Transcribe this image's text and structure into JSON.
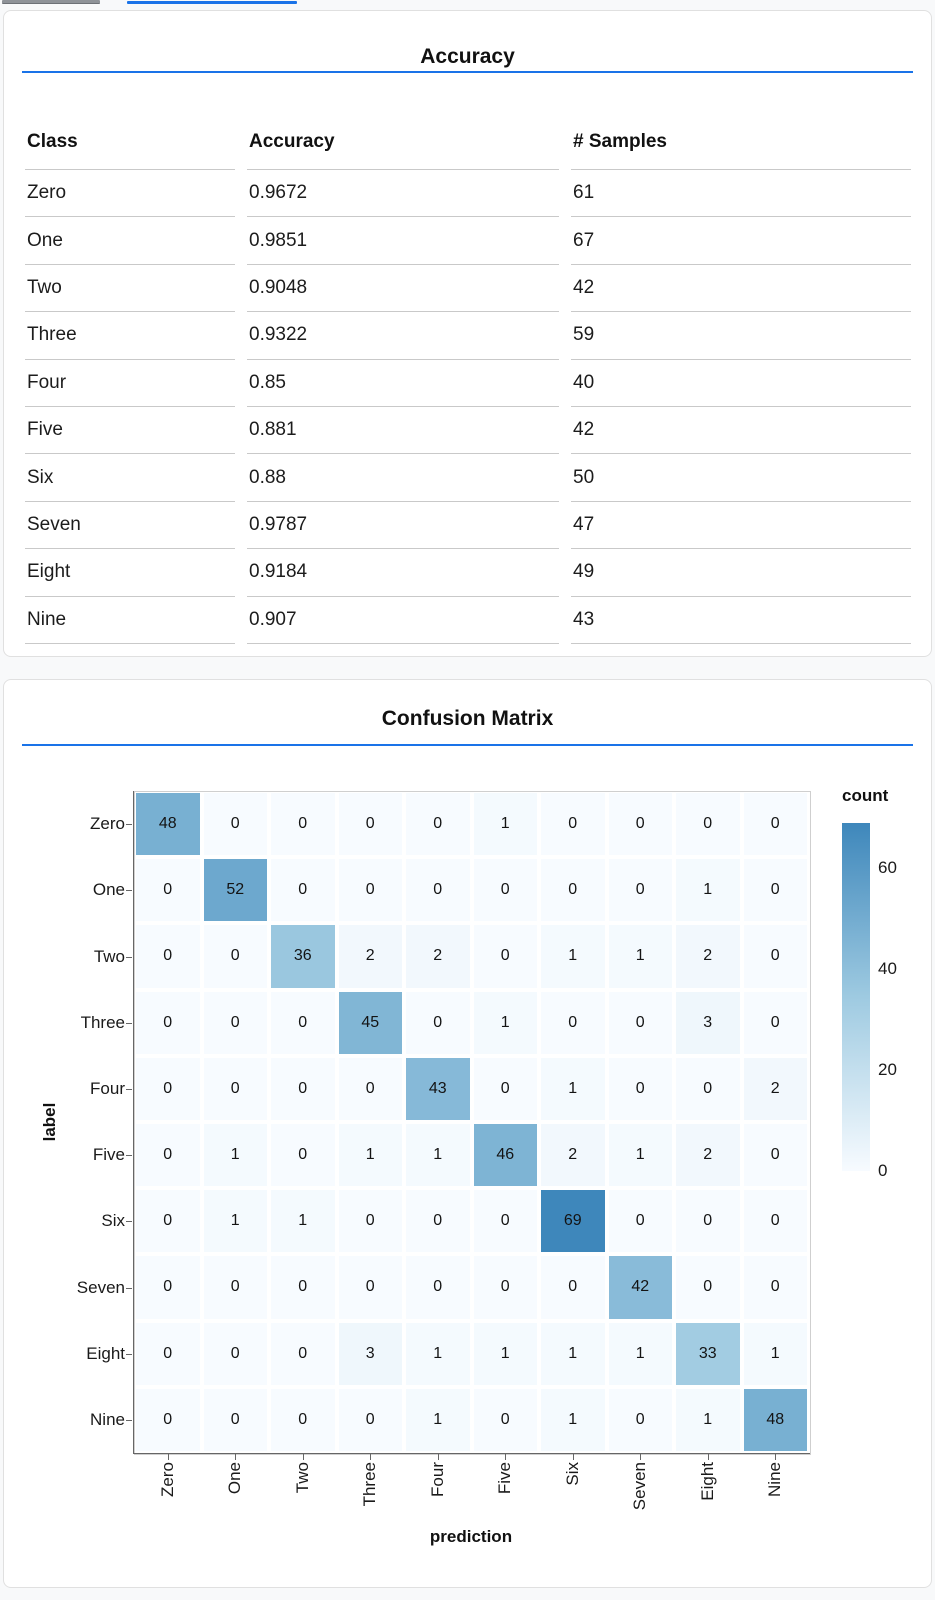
{
  "colors": {
    "accent": "#1a73e8",
    "heat_min": "#f7fbff",
    "heat_mid": "#9ecae1",
    "heat_max": "#3e87bb"
  },
  "accuracy_panel": {
    "title": "Accuracy",
    "columns": [
      "Class",
      "Accuracy",
      "# Samples"
    ],
    "rows": [
      [
        "Zero",
        "0.9672",
        "61"
      ],
      [
        "One",
        "0.9851",
        "67"
      ],
      [
        "Two",
        "0.9048",
        "42"
      ],
      [
        "Three",
        "0.9322",
        "59"
      ],
      [
        "Four",
        "0.85",
        "40"
      ],
      [
        "Five",
        "0.881",
        "42"
      ],
      [
        "Six",
        "0.88",
        "50"
      ],
      [
        "Seven",
        "0.9787",
        "47"
      ],
      [
        "Eight",
        "0.9184",
        "49"
      ],
      [
        "Nine",
        "0.907",
        "43"
      ]
    ]
  },
  "confusion_panel": {
    "title": "Confusion Matrix",
    "xlabel": "prediction",
    "ylabel": "label",
    "legend_title": "count"
  },
  "chart_data": {
    "type": "heatmap",
    "title": "Confusion Matrix",
    "xlabel": "prediction",
    "ylabel": "label",
    "categories": [
      "Zero",
      "One",
      "Two",
      "Three",
      "Four",
      "Five",
      "Six",
      "Seven",
      "Eight",
      "Nine"
    ],
    "matrix": [
      [
        48,
        0,
        0,
        0,
        0,
        1,
        0,
        0,
        0,
        0
      ],
      [
        0,
        52,
        0,
        0,
        0,
        0,
        0,
        0,
        1,
        0
      ],
      [
        0,
        0,
        36,
        2,
        2,
        0,
        1,
        1,
        2,
        0
      ],
      [
        0,
        0,
        0,
        45,
        0,
        1,
        0,
        0,
        3,
        0
      ],
      [
        0,
        0,
        0,
        0,
        43,
        0,
        1,
        0,
        0,
        2
      ],
      [
        0,
        1,
        0,
        1,
        1,
        46,
        2,
        1,
        2,
        0
      ],
      [
        0,
        1,
        1,
        0,
        0,
        0,
        69,
        0,
        0,
        0
      ],
      [
        0,
        0,
        0,
        0,
        0,
        0,
        0,
        42,
        0,
        0
      ],
      [
        0,
        0,
        0,
        3,
        1,
        1,
        1,
        1,
        33,
        1
      ],
      [
        0,
        0,
        0,
        0,
        1,
        0,
        1,
        0,
        1,
        48
      ]
    ],
    "legend": {
      "title": "count",
      "ticks": [
        0,
        20,
        40,
        60
      ],
      "domain": [
        0,
        69
      ],
      "position": "right"
    },
    "grid": false
  }
}
